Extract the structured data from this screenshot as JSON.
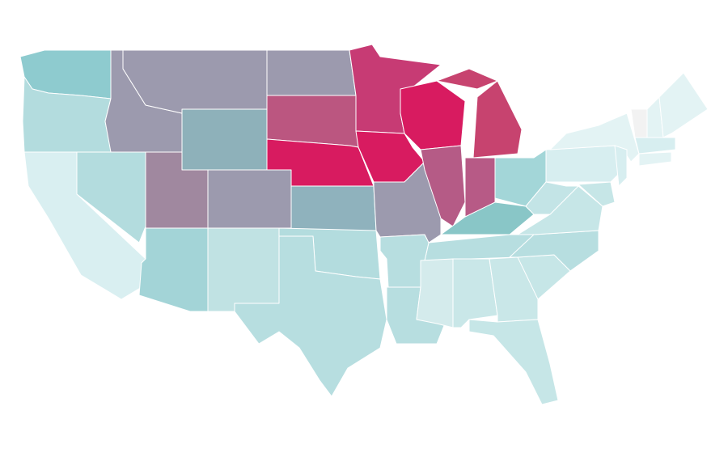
{
  "map": {
    "regions": [
      {
        "color": "#8ecbcf"
      },
      {
        "color": "#b3dcde"
      },
      {
        "color": "#d9eff1"
      },
      {
        "color": "#b3dcde"
      },
      {
        "color": "#9c9aae"
      },
      {
        "color": "#9c9aae"
      },
      {
        "color": "#8eb1ba"
      },
      {
        "color": "#a0889f"
      },
      {
        "color": "#9c9aae"
      },
      {
        "color": "#a3d4d7"
      },
      {
        "color": "#c0e2e3"
      },
      {
        "color": "#9c9aae"
      },
      {
        "color": "#bb5680"
      },
      {
        "color": "#d81b60"
      },
      {
        "color": "#8fb2bd"
      },
      {
        "color": "#b3dcde"
      },
      {
        "color": "#b7dee0"
      },
      {
        "color": "#c73b74"
      },
      {
        "color": "#d81b60"
      },
      {
        "color": "#9c9aae"
      },
      {
        "color": "#d81b60"
      },
      {
        "color": "#b55b86"
      },
      {
        "color": "#c7436f"
      },
      {
        "color": "#b75a86"
      },
      {
        "color": "#a3d6d8"
      },
      {
        "color": "#89c6c7"
      },
      {
        "color": "#b7dee0"
      },
      {
        "color": "#b7dee0"
      },
      {
        "color": "#b7dee0"
      },
      {
        "color": "#d4ebec"
      },
      {
        "color": "#c9e7e8"
      },
      {
        "color": "#c9e7e8"
      },
      {
        "color": "#c6e6e7"
      },
      {
        "color": "#c6e6e7"
      },
      {
        "color": "#b7dee0"
      },
      {
        "color": "#c6e6e7"
      },
      {
        "color": "#c3e4e6"
      },
      {
        "color": "#d7eef0"
      },
      {
        "color": "#e3f3f4"
      },
      {
        "color": "#c6e6e7"
      },
      {
        "color": "#d7eef0"
      },
      {
        "color": "#f2f2f2"
      },
      {
        "color": "#e3f3f4"
      },
      {
        "color": "#e3f3f4"
      },
      {
        "color": "#d7eef0"
      },
      {
        "color": "#e3f3f4"
      }
    ]
  }
}
